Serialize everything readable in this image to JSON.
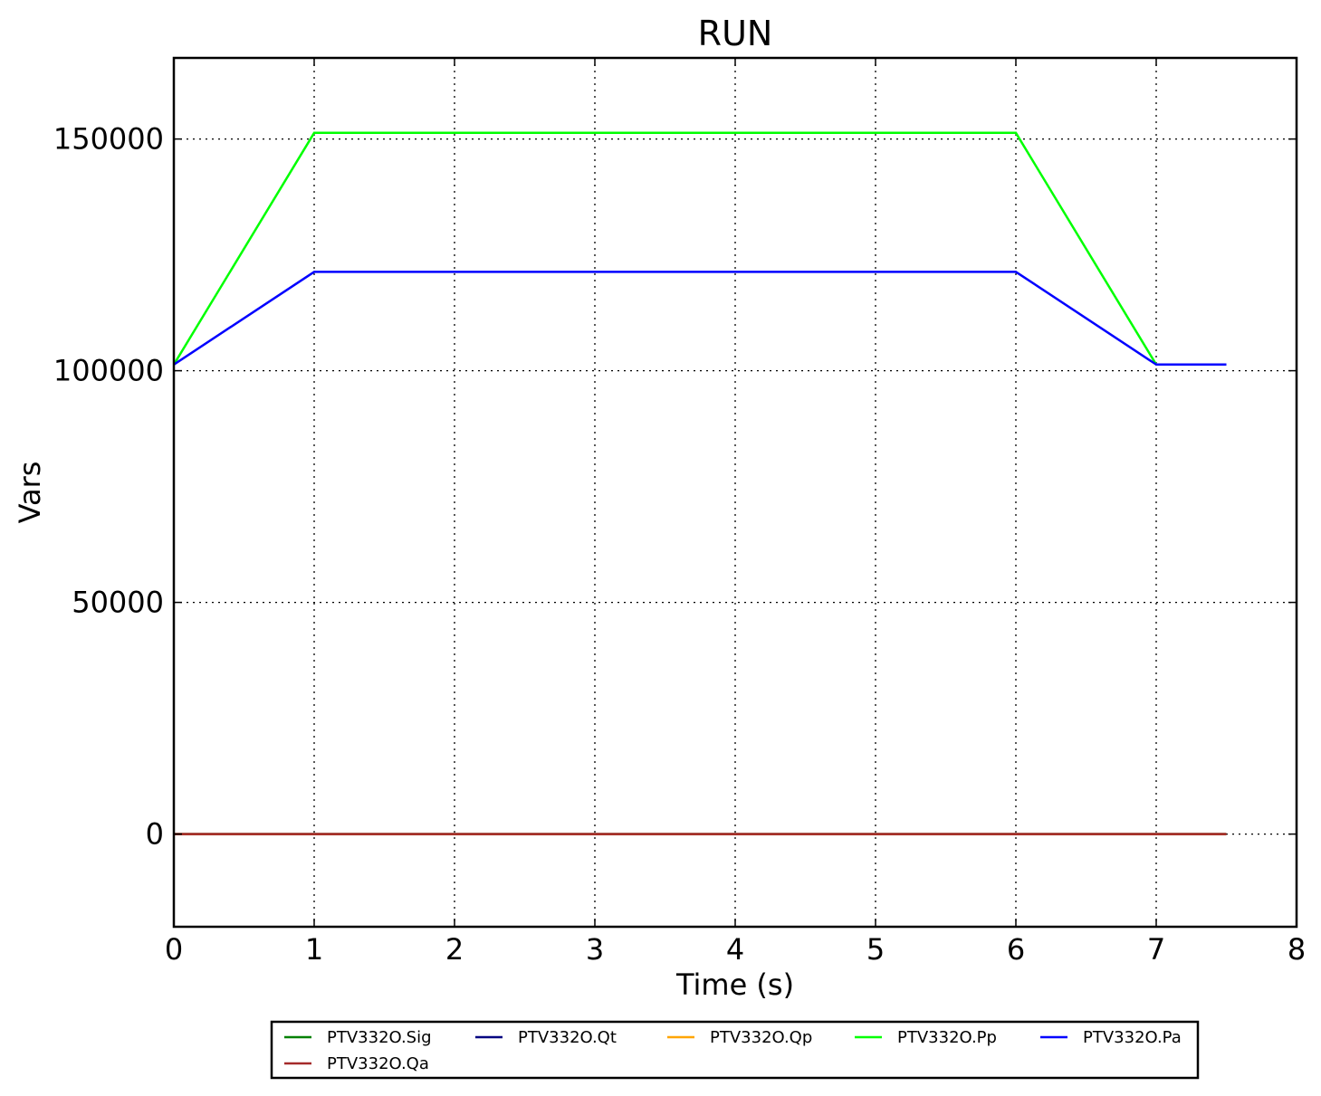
{
  "chart_data": {
    "type": "line",
    "title": "RUN",
    "xlabel": "Time (s)",
    "ylabel": "Vars",
    "xlim": [
      0,
      8
    ],
    "ylim": [
      -20000,
      167500
    ],
    "xticks": [
      0,
      1,
      2,
      3,
      4,
      5,
      6,
      7,
      8
    ],
    "xtick_labels": [
      "0",
      "1",
      "2",
      "3",
      "4",
      "5",
      "6",
      "7",
      "8"
    ],
    "yticks": [
      0,
      50000,
      100000,
      150000
    ],
    "ytick_labels": [
      "0",
      "50000",
      "100000",
      "150000"
    ],
    "grid": true,
    "legend_position": "bottom",
    "series": [
      {
        "name": "PTV332O.Sig",
        "color": "#008000",
        "x": [
          0,
          7.5
        ],
        "y": [
          0,
          0
        ]
      },
      {
        "name": "PTV332O.Qt",
        "color": "#000080",
        "x": [
          0,
          7.5
        ],
        "y": [
          0,
          0
        ]
      },
      {
        "name": "PTV332O.Qp",
        "color": "#FFA500",
        "x": [
          0,
          7.5
        ],
        "y": [
          0,
          0
        ]
      },
      {
        "name": "PTV332O.Pp",
        "color": "#00FF00",
        "x": [
          0,
          1,
          6,
          7,
          7.5
        ],
        "y": [
          101325,
          151325,
          151325,
          101325,
          101325
        ]
      },
      {
        "name": "PTV332O.Pa",
        "color": "#0000FF",
        "x": [
          0,
          1,
          6,
          7,
          7.5
        ],
        "y": [
          101325,
          121325,
          121325,
          101325,
          101325
        ]
      },
      {
        "name": "PTV332O.Qa",
        "color": "#A52A2A",
        "x": [
          0,
          7.5
        ],
        "y": [
          0,
          0
        ]
      }
    ]
  }
}
